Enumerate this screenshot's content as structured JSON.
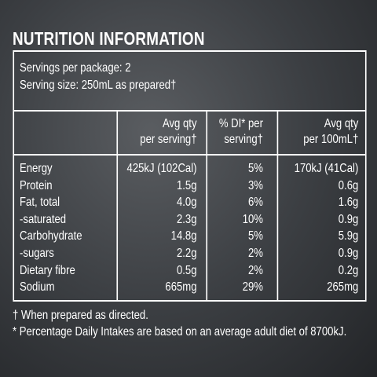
{
  "title": "NUTRITION INFORMATION",
  "servings": [
    "Servings per package: 2",
    "Serving size: 250mL as prepared†"
  ],
  "table": {
    "headers": [
      [
        "Avg qty",
        "per serving†"
      ],
      [
        "% DI* per",
        "serving†"
      ],
      [
        "Avg qty",
        "per 100mL†"
      ]
    ],
    "rows": [
      [
        "Energy",
        "425kJ (102Cal)",
        "5%",
        "170kJ (41Cal)"
      ],
      [
        "Protein",
        "1.5g",
        "3%",
        "0.6g"
      ],
      [
        "Fat, total",
        "4.0g",
        "6%",
        "1.6g"
      ],
      [
        "-saturated",
        "2.3g",
        "10%",
        "0.9g"
      ],
      [
        "Carbohydrate",
        "14.8g",
        "5%",
        "5.9g"
      ],
      [
        "-sugars",
        "2.2g",
        "2%",
        "0.9g"
      ],
      [
        "Dietary fibre",
        "0.5g",
        "2%",
        "0.2g"
      ],
      [
        "Sodium",
        "665mg",
        "29%",
        "265mg"
      ]
    ]
  },
  "footnotes": [
    "† When prepared as directed.",
    "* Percentage Daily Intakes are based on an average adult diet of 8700kJ."
  ]
}
